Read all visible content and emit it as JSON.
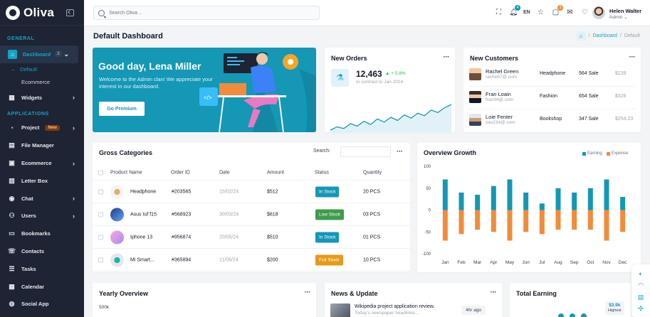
{
  "sidebar": {
    "logo": "Oliva",
    "sections": {
      "general": "GENERAL",
      "applications": "APPLICATIONS"
    },
    "dashboard": {
      "label": "Dashboard",
      "count": "2"
    },
    "sub": [
      "Default",
      "Ecommerce"
    ],
    "items": [
      {
        "label": "Widgets",
        "icon": "widgets-icon",
        "glyph": "▦"
      },
      {
        "label": "Project",
        "icon": "project-icon",
        "glyph": "◔",
        "badge": "New"
      },
      {
        "label": "File Manager",
        "icon": "file-icon",
        "glyph": "▤"
      },
      {
        "label": "Ecommerce",
        "icon": "cart-icon",
        "glyph": "▣"
      },
      {
        "label": "Letter Box",
        "icon": "letter-icon",
        "glyph": "▥"
      },
      {
        "label": "Chat",
        "icon": "chat-icon",
        "glyph": "◉"
      },
      {
        "label": "Users",
        "icon": "users-icon",
        "glyph": "⚇"
      },
      {
        "label": "Bookmarks",
        "icon": "bookmark-icon",
        "glyph": "▭"
      },
      {
        "label": "Contacts",
        "icon": "contacts-icon",
        "glyph": "☏"
      },
      {
        "label": "Tasks",
        "icon": "tasks-icon",
        "glyph": "☰"
      },
      {
        "label": "Calendar",
        "icon": "calendar-icon",
        "glyph": "▦"
      },
      {
        "label": "Social App",
        "icon": "social-icon",
        "glyph": "◍"
      }
    ]
  },
  "topbar": {
    "search_placeholder": "Search Oliva ..",
    "lang": "EN",
    "notif_count": "4",
    "cart_count": "3",
    "user_name": "Helen Walter",
    "user_role": "Admin ⌄"
  },
  "page": {
    "title": "Default Dashboard",
    "breadcrumb": [
      "Dashboard",
      "Default"
    ]
  },
  "welcome": {
    "title": "Good day, Lena Miller",
    "text": "Welcome to the Admin clan! We appreciate your interest in our dashboard.",
    "button": "Go Premium"
  },
  "orders": {
    "title": "New Orders",
    "value": "12,463",
    "change": "+ 5.8%",
    "subtitle": "In contrast to Jan 2024",
    "trend": [
      8,
      12,
      10,
      16,
      13,
      19,
      15,
      22,
      18,
      24,
      20,
      27,
      23,
      29,
      26,
      33,
      30,
      36,
      40
    ]
  },
  "customers": {
    "title": "New Customers",
    "rows": [
      {
        "name": "Rachel Green",
        "email": "rache67@.com",
        "category": "Headphone",
        "sales": "564 Sale",
        "amount": "$239"
      },
      {
        "name": "Fran Loain",
        "email": "fran34@.com",
        "category": "Fashion",
        "sales": "654 Sale",
        "amount": "$326"
      },
      {
        "name": "Loie Fenter",
        "email": "loie234@.com",
        "category": "Bookshop",
        "sales": "347 Sale",
        "amount": "$254.23"
      }
    ]
  },
  "gross": {
    "title": "Gross Categories",
    "search_label": "Search:",
    "headers": [
      "Product Name",
      "Order ID",
      "Date",
      "Amount",
      "Status",
      "Quantity"
    ],
    "rows": [
      {
        "product": "Headphone",
        "order": "#203565",
        "date": "15/02/24",
        "amount": "$512",
        "status": "In Stock",
        "status_color": "#1597b6",
        "qty": "20 PCS"
      },
      {
        "product": "Asus tuf f15",
        "order": "#568923",
        "date": "30/03/24",
        "amount": "$618",
        "status": "Low Stock",
        "status_color": "#3f9c4b",
        "qty": "03 PCS"
      },
      {
        "product": "Iphone 13",
        "order": "#956874",
        "date": "20/05/24",
        "amount": "$510",
        "status": "In Stock",
        "status_color": "#1597b6",
        "qty": "01 PCS"
      },
      {
        "product": "Mi Smart...",
        "order": "#365894",
        "date": "11/06/24",
        "amount": "$200",
        "status": "Full Stock",
        "status_color": "#e59a1a",
        "qty": "10 PCS"
      }
    ]
  },
  "overview": {
    "title": "Overview Growth",
    "legend": [
      "Earning",
      "Expense"
    ]
  },
  "chart_data": {
    "type": "bar",
    "categories": [
      "Jan",
      "Feb",
      "Mar",
      "Apr",
      "May",
      "Jun",
      "Jul",
      "Aug",
      "Sep",
      "Oct",
      "Nov",
      "Dec"
    ],
    "series": [
      {
        "name": "Earning",
        "color": "#1597b6",
        "values": [
          70,
          40,
          35,
          55,
          70,
          40,
          15,
          50,
          40,
          50,
          70,
          30
        ]
      },
      {
        "name": "Expense",
        "color": "#f08c3a",
        "values": [
          -70,
          -55,
          -45,
          -50,
          -70,
          -50,
          -55,
          -45,
          -45,
          -45,
          -70,
          -50
        ]
      }
    ],
    "ylim": [
      -100,
      100
    ],
    "yticks": [
      100,
      50,
      0,
      -50,
      -100
    ]
  },
  "bottom": {
    "yearly": {
      "title": "Yearly Overview",
      "tick": "500k"
    },
    "news": {
      "title": "News & Update",
      "headline": "Wikipedia project application review.",
      "sub": "Today's newspaper headlines...",
      "time": "4hr ago"
    },
    "earning": {
      "title": "Total Earning",
      "value": "$3.9k",
      "label": "Highest"
    }
  },
  "colors": {
    "accent": "#1597b6",
    "sidebar": "#1e2433",
    "expense": "#f08c3a"
  }
}
